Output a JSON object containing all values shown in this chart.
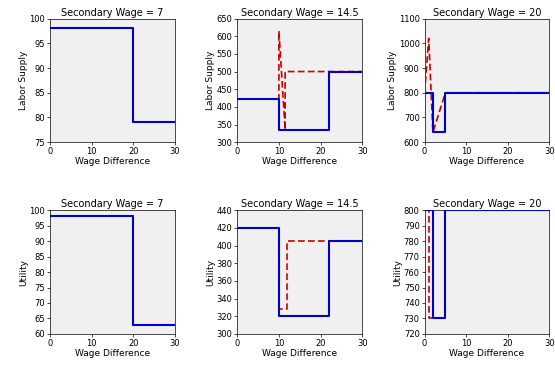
{
  "titles_top": [
    "Secondary Wage = 7",
    "Secondary Wage = 14.5",
    "Secondary Wage = 20"
  ],
  "titles_bottom": [
    "Secondary Wage = 7",
    "Secondary Wage = 14.5",
    "Secondary Wage = 20"
  ],
  "xlabel": "Wage Difference",
  "ylabels_top": [
    "Labor Supply",
    "Labor Supply",
    "Labor Supply"
  ],
  "ylabels_bottom": [
    "Utility",
    "Utility",
    "Utility"
  ],
  "blue_color": "#0000cc",
  "red_color": "#cc0000",
  "panel_bg": "#f0f0f0",
  "panels": {
    "top_left": {
      "xlim": [
        0,
        30
      ],
      "ylim": [
        75,
        100
      ],
      "yticks": [
        75,
        80,
        85,
        90,
        95,
        100
      ],
      "xticks": [
        0,
        10,
        20,
        30
      ],
      "blue_x": [
        0,
        20,
        20,
        30
      ],
      "blue_y": [
        98,
        98,
        79,
        79
      ],
      "red_x": [
        0,
        20,
        20,
        30
      ],
      "red_y": [
        98,
        98,
        79,
        79
      ]
    },
    "top_mid": {
      "xlim": [
        0,
        30
      ],
      "ylim": [
        300,
        650
      ],
      "yticks": [
        300,
        350,
        400,
        450,
        500,
        550,
        600,
        650
      ],
      "xticks": [
        0,
        10,
        20,
        30
      ],
      "blue_x": [
        0,
        10,
        10,
        22,
        22,
        30
      ],
      "blue_y": [
        422,
        422,
        335,
        335,
        500,
        500
      ],
      "red_x": [
        0,
        10,
        10,
        11.5,
        11.5,
        22,
        30
      ],
      "red_y": [
        422,
        422,
        615,
        335,
        500,
        500,
        500
      ]
    },
    "top_right": {
      "xlim": [
        0,
        30
      ],
      "ylim": [
        600,
        1100
      ],
      "yticks": [
        600,
        700,
        800,
        900,
        1000,
        1100
      ],
      "xticks": [
        0,
        10,
        20,
        30
      ],
      "blue_x": [
        0,
        2,
        2,
        5,
        5,
        30
      ],
      "blue_y": [
        800,
        800,
        640,
        640,
        800,
        800
      ],
      "red_x": [
        0,
        1,
        2,
        2,
        5,
        5,
        30
      ],
      "red_y": [
        800,
        1020,
        640,
        640,
        800,
        800,
        800
      ]
    },
    "bot_left": {
      "xlim": [
        0,
        30
      ],
      "ylim": [
        60,
        100
      ],
      "yticks": [
        60,
        65,
        70,
        75,
        80,
        85,
        90,
        95,
        100
      ],
      "xticks": [
        0,
        10,
        20,
        30
      ],
      "blue_x": [
        0,
        20,
        20,
        30
      ],
      "blue_y": [
        98,
        98,
        63,
        63
      ],
      "red_x": [
        0,
        20,
        20,
        30
      ],
      "red_y": [
        98,
        98,
        63,
        63
      ]
    },
    "bot_mid": {
      "xlim": [
        0,
        30
      ],
      "ylim": [
        300,
        440
      ],
      "yticks": [
        300,
        320,
        340,
        360,
        380,
        400,
        420,
        440
      ],
      "xticks": [
        0,
        10,
        20,
        30
      ],
      "blue_x": [
        0,
        10,
        10,
        22,
        22,
        30
      ],
      "blue_y": [
        420,
        420,
        320,
        320,
        405,
        405
      ],
      "red_x": [
        0,
        10,
        10,
        12,
        12,
        30
      ],
      "red_y": [
        420,
        420,
        328,
        328,
        405,
        405
      ]
    },
    "bot_right": {
      "xlim": [
        0,
        30
      ],
      "ylim": [
        720,
        800
      ],
      "yticks": [
        720,
        730,
        740,
        750,
        760,
        770,
        780,
        790,
        800
      ],
      "xticks": [
        0,
        10,
        20,
        30
      ],
      "blue_x": [
        0,
        2,
        2,
        5,
        5,
        30
      ],
      "blue_y": [
        800,
        800,
        730,
        730,
        800,
        800
      ],
      "red_x": [
        0,
        1,
        1,
        5,
        5,
        30
      ],
      "red_y": [
        800,
        800,
        730,
        730,
        800,
        800
      ]
    }
  }
}
